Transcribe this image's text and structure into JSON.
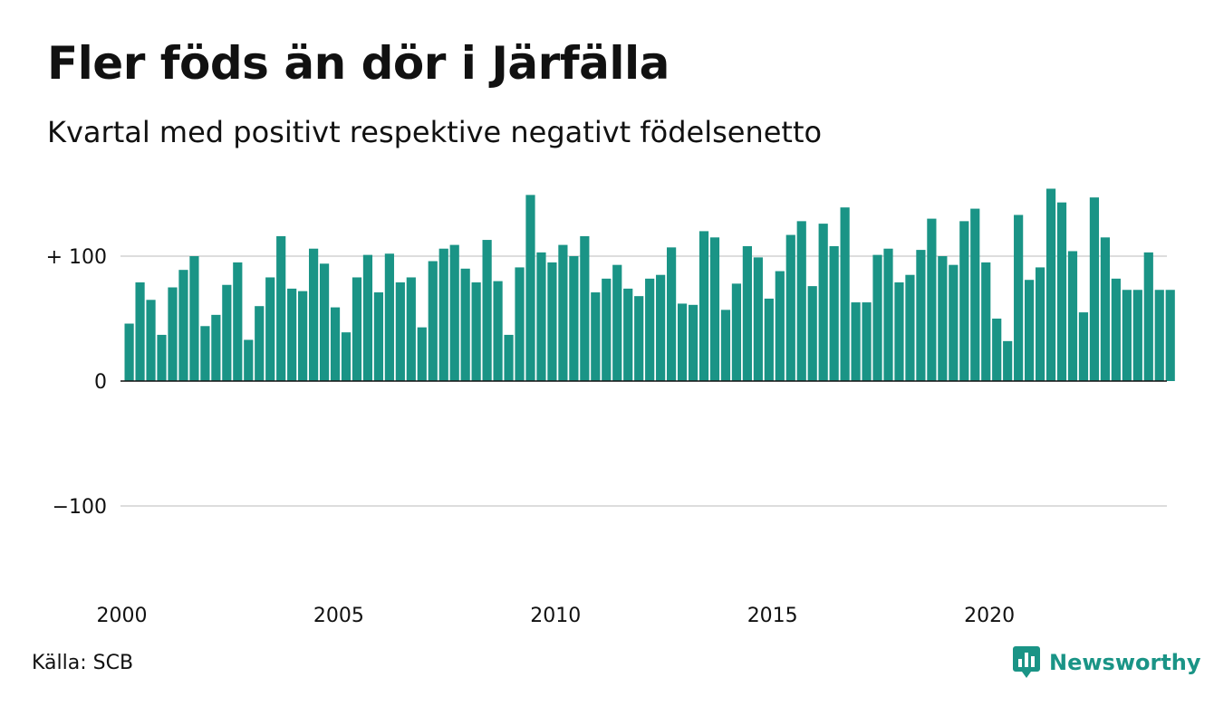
{
  "header": {
    "title": "Fler föds än dör i Järfälla",
    "subtitle": "Kvartal med positivt respektive negativt födelsenetto"
  },
  "footer": {
    "source": "Källa: SCB",
    "brand": "Newsworthy"
  },
  "colors": {
    "bar": "#1a9486",
    "grid": "#dddddd",
    "axis": "#111111",
    "brand": "#1a9486"
  },
  "icons": {
    "brand": "newsworthy-logo-icon"
  },
  "chart_data": {
    "type": "bar",
    "title": "Fler föds än dör i Järfälla",
    "subtitle": "Kvartal med positivt respektive negativt födelsenetto",
    "xlabel": "",
    "ylabel": "",
    "x_start": "2000-Q1",
    "x_tick_labels": [
      "2000",
      "2005",
      "2010",
      "2015",
      "2020"
    ],
    "y_ticks": [
      100,
      0,
      -100
    ],
    "y_tick_labels": [
      "+ 100",
      "0",
      "−100"
    ],
    "ylim": [
      -160,
      155
    ],
    "grid": true,
    "legend": "none",
    "categories": [
      "2000-Q1",
      "2000-Q2",
      "2000-Q3",
      "2000-Q4",
      "2001-Q1",
      "2001-Q2",
      "2001-Q3",
      "2001-Q4",
      "2002-Q1",
      "2002-Q2",
      "2002-Q3",
      "2002-Q4",
      "2003-Q1",
      "2003-Q2",
      "2003-Q3",
      "2003-Q4",
      "2004-Q1",
      "2004-Q2",
      "2004-Q3",
      "2004-Q4",
      "2005-Q1",
      "2005-Q2",
      "2005-Q3",
      "2005-Q4",
      "2006-Q1",
      "2006-Q2",
      "2006-Q3",
      "2006-Q4",
      "2007-Q1",
      "2007-Q2",
      "2007-Q3",
      "2007-Q4",
      "2008-Q1",
      "2008-Q2",
      "2008-Q3",
      "2008-Q4",
      "2009-Q1",
      "2009-Q2",
      "2009-Q3",
      "2009-Q4",
      "2010-Q1",
      "2010-Q2",
      "2010-Q3",
      "2010-Q4",
      "2011-Q1",
      "2011-Q2",
      "2011-Q3",
      "2011-Q4",
      "2012-Q1",
      "2012-Q2",
      "2012-Q3",
      "2012-Q4",
      "2013-Q1",
      "2013-Q2",
      "2013-Q3",
      "2013-Q4",
      "2014-Q1",
      "2014-Q2",
      "2014-Q3",
      "2014-Q4",
      "2015-Q1",
      "2015-Q2",
      "2015-Q3",
      "2015-Q4",
      "2016-Q1",
      "2016-Q2",
      "2016-Q3",
      "2016-Q4",
      "2017-Q1",
      "2017-Q2",
      "2017-Q3",
      "2017-Q4",
      "2018-Q1",
      "2018-Q2",
      "2018-Q3",
      "2018-Q4",
      "2019-Q1",
      "2019-Q2",
      "2019-Q3",
      "2019-Q4",
      "2020-Q1",
      "2020-Q2",
      "2020-Q3",
      "2020-Q4",
      "2021-Q1",
      "2021-Q2",
      "2021-Q3",
      "2021-Q4",
      "2022-Q1",
      "2022-Q2",
      "2022-Q3",
      "2022-Q4",
      "2023-Q1",
      "2023-Q2",
      "2023-Q3",
      "2023-Q4",
      "2024-Q1"
    ],
    "values": [
      46,
      79,
      65,
      37,
      75,
      89,
      100,
      44,
      53,
      77,
      95,
      33,
      60,
      83,
      116,
      74,
      72,
      106,
      94,
      59,
      39,
      83,
      101,
      71,
      102,
      79,
      83,
      43,
      96,
      106,
      109,
      90,
      79,
      113,
      80,
      37,
      91,
      149,
      103,
      95,
      109,
      100,
      116,
      71,
      82,
      93,
      74,
      68,
      82,
      85,
      107,
      62,
      61,
      120,
      115,
      57,
      78,
      108,
      99,
      66,
      88,
      117,
      128,
      76,
      126,
      108,
      139,
      63,
      63,
      101,
      106,
      79,
      85,
      105,
      130,
      100,
      93,
      128,
      138,
      95,
      50,
      32,
      133,
      81,
      91,
      154,
      143,
      104,
      55,
      147,
      115,
      82,
      73,
      73,
      103,
      73,
      73
    ]
  }
}
